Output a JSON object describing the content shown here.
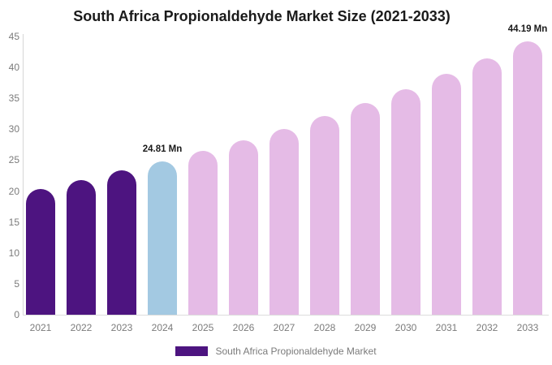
{
  "title": "South Africa Propionaldehyde Market Size (2021-2033)",
  "legend": {
    "label": "South Africa Propionaldehyde Market",
    "swatch_color": "#4d1480"
  },
  "colors": {
    "historical_bar": "#4d1480",
    "highlight_year_bar": "#a3c9e2",
    "forecast_bar": "#e5bbe6",
    "axis_line": "#d6d6d6",
    "tick_text": "#7b7b7b",
    "title_text": "#1a1a1a",
    "annotation_text": "#1a1a1a",
    "background": "#ffffff"
  },
  "chart_data": {
    "type": "bar",
    "title": "South Africa Propionaldehyde Market Size (2021-2033)",
    "categories": [
      "2021",
      "2022",
      "2023",
      "2024",
      "2025",
      "2026",
      "2027",
      "2028",
      "2029",
      "2030",
      "2031",
      "2032",
      "2033"
    ],
    "series": [
      {
        "name": "South Africa Propionaldehyde Market",
        "values": [
          20.4,
          21.8,
          23.3,
          24.81,
          26.5,
          28.2,
          30.1,
          32.1,
          34.2,
          36.5,
          38.9,
          41.5,
          44.19
        ]
      }
    ],
    "unit": "Mn",
    "xlabel": "",
    "ylabel": "",
    "ylim": [
      0,
      45
    ],
    "ytick_step": 5,
    "grid": false,
    "legend_position": "bottom",
    "bar_colors": [
      "#4d1480",
      "#4d1480",
      "#4d1480",
      "#a3c9e2",
      "#e5bbe6",
      "#e5bbe6",
      "#e5bbe6",
      "#e5bbe6",
      "#e5bbe6",
      "#e5bbe6",
      "#e5bbe6",
      "#e5bbe6",
      "#e5bbe6"
    ],
    "annotations": [
      {
        "index": 3,
        "label": "24.81 Mn"
      },
      {
        "index": 12,
        "label": "44.19 Mn"
      }
    ]
  }
}
